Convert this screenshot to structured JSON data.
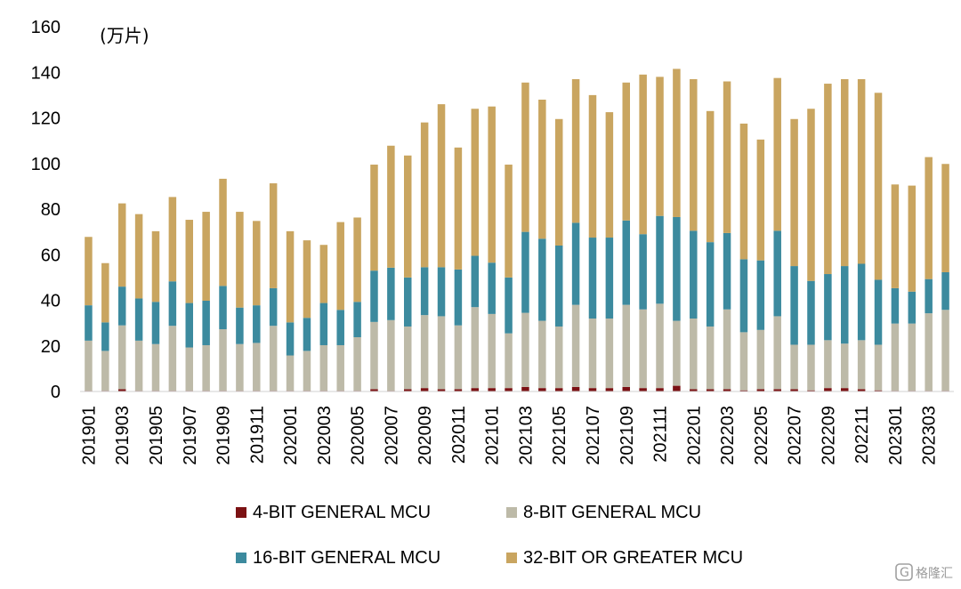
{
  "chart_data": {
    "type": "bar",
    "stacked": true,
    "unit_label": "(万片)",
    "ylim": [
      0,
      160
    ],
    "yticks": [
      0,
      20,
      40,
      60,
      80,
      100,
      120,
      140,
      160
    ],
    "grid": false,
    "legend_position": "bottom",
    "categories": [
      "201901",
      "201902",
      "201903",
      "201904",
      "201905",
      "201906",
      "201907",
      "201908",
      "201909",
      "201910",
      "201911",
      "201912",
      "202001",
      "202002",
      "202003",
      "202004",
      "202005",
      "202006",
      "202007",
      "202008",
      "202009",
      "202010",
      "202011",
      "202012",
      "202101",
      "202102",
      "202103",
      "202104",
      "202105",
      "202106",
      "202107",
      "202108",
      "202109",
      "202110",
      "202111",
      "202112",
      "202201",
      "202202",
      "202203",
      "202204",
      "202205",
      "202206",
      "202207",
      "202208",
      "202209",
      "202210",
      "202211",
      "202212",
      "202301",
      "202302",
      "202303",
      "202304"
    ],
    "series": [
      {
        "name": "4-BIT GENERAL MCU",
        "color": "#7b1113",
        "values": [
          0.3,
          0.3,
          1,
          0.3,
          0.3,
          0.3,
          0.3,
          0.3,
          0.3,
          0.3,
          0.3,
          0.3,
          0.3,
          0.3,
          0.3,
          0.3,
          0.3,
          1,
          0.3,
          1,
          1.5,
          1,
          1,
          1.5,
          1.5,
          1.5,
          2,
          1.5,
          1.5,
          2,
          1.5,
          1.5,
          2,
          1.5,
          1.5,
          2.5,
          1,
          1,
          1,
          0.5,
          1,
          1,
          1,
          0.5,
          1.5,
          1.5,
          1,
          0.5,
          0.3,
          0.3,
          0.3,
          0.3
        ]
      },
      {
        "name": "8-BIT GENERAL MCU",
        "color": "#bdbaa8",
        "values": [
          22,
          17.5,
          28,
          22,
          20.5,
          28.5,
          19,
          20,
          27,
          20.5,
          21,
          28.5,
          15.5,
          17.5,
          20,
          20,
          23.5,
          29.5,
          31,
          27.5,
          32,
          32,
          28,
          35.5,
          32.5,
          24,
          32.5,
          29.5,
          27,
          36,
          30.5,
          30.5,
          36,
          34.5,
          37,
          28.5,
          31,
          27.5,
          35,
          25.5,
          26,
          32,
          19.5,
          20,
          21,
          19.5,
          21.5,
          20,
          29.5,
          29.5,
          34,
          35.5
        ]
      },
      {
        "name": "16-BIT GENERAL MCU",
        "color": "#3c8a9e",
        "values": [
          15.5,
          12.5,
          17,
          18.5,
          18.5,
          19.5,
          19.5,
          19.5,
          19,
          16,
          16.5,
          16.5,
          14.5,
          14.5,
          18.5,
          15.5,
          15.5,
          22.5,
          23,
          21.5,
          21,
          21.5,
          24.5,
          22.5,
          22.5,
          24.5,
          35.5,
          36,
          35.5,
          36,
          35.5,
          35.5,
          37,
          33,
          38.5,
          45.5,
          38.5,
          37,
          33.5,
          32,
          30.5,
          37.5,
          34.5,
          28,
          29,
          34,
          33.5,
          28.5,
          15.5,
          14,
          15,
          16.5
        ]
      },
      {
        "name": "32-BIT OR GREATER MCU",
        "color": "#c9a560",
        "values": [
          30,
          26,
          36.5,
          37,
          31,
          37,
          36.5,
          39,
          47,
          42,
          37,
          46,
          40,
          34,
          25.5,
          38.5,
          37,
          46.5,
          53.5,
          53.5,
          63.5,
          71.5,
          53.5,
          64.5,
          68.5,
          49.5,
          65.5,
          61,
          55.5,
          63,
          62.5,
          55,
          60.5,
          70,
          61,
          65,
          66.5,
          57.5,
          66.5,
          59.5,
          53,
          67,
          64.5,
          75.5,
          83.5,
          82,
          81,
          82,
          45.5,
          46.5,
          53.5,
          47.5
        ]
      }
    ],
    "xtick_labels": [
      "201901",
      "201903",
      "201905",
      "201907",
      "201909",
      "201911",
      "202001",
      "202003",
      "202005",
      "202007",
      "202009",
      "202011",
      "202101",
      "202103",
      "202105",
      "202107",
      "202109",
      "202111",
      "202201",
      "202203",
      "202205",
      "202207",
      "202209",
      "202211",
      "202301",
      "202303"
    ]
  },
  "watermark": {
    "icon": "chart-logo-icon",
    "text": "格隆汇"
  }
}
